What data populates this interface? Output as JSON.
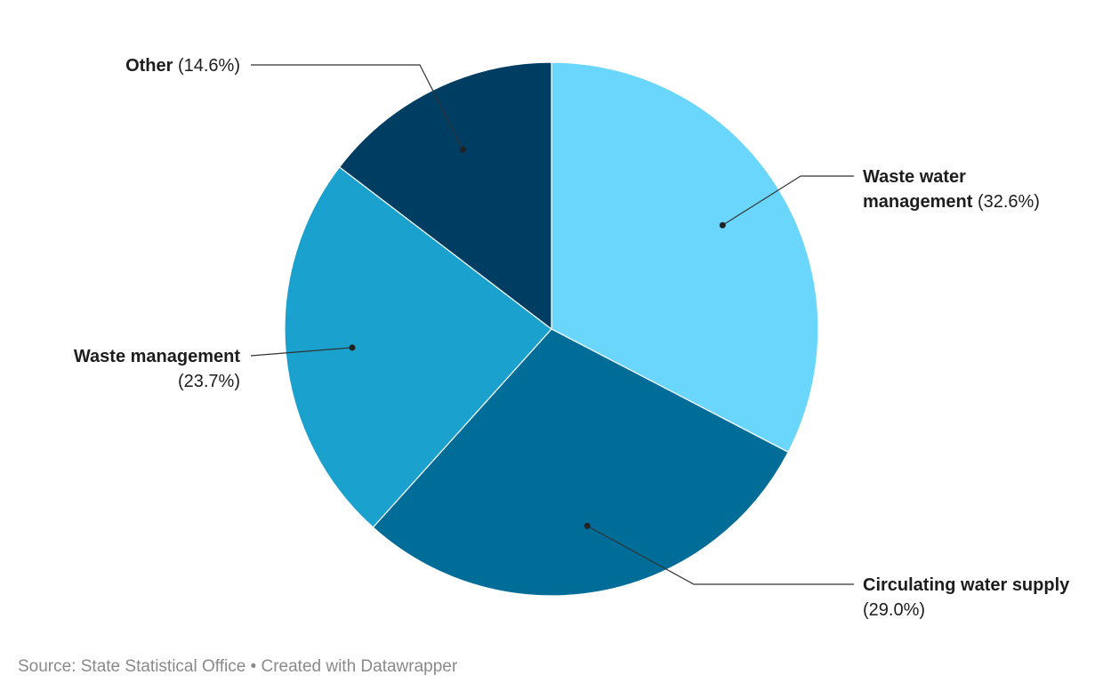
{
  "chart_data": {
    "type": "pie",
    "categories": [
      "Waste water management",
      "Circulating water supply",
      "Waste management",
      "Other"
    ],
    "values": [
      32.6,
      29.0,
      23.7,
      14.6
    ],
    "value_labels": [
      "(32.6%)",
      "(29.0%)",
      "(23.7%)",
      "(14.6%)"
    ],
    "colors": [
      "#6ad6fc",
      "#006c98",
      "#1aa1cd",
      "#003d63"
    ]
  },
  "source": "Source: State Statistical Office • Created with Datawrapper"
}
